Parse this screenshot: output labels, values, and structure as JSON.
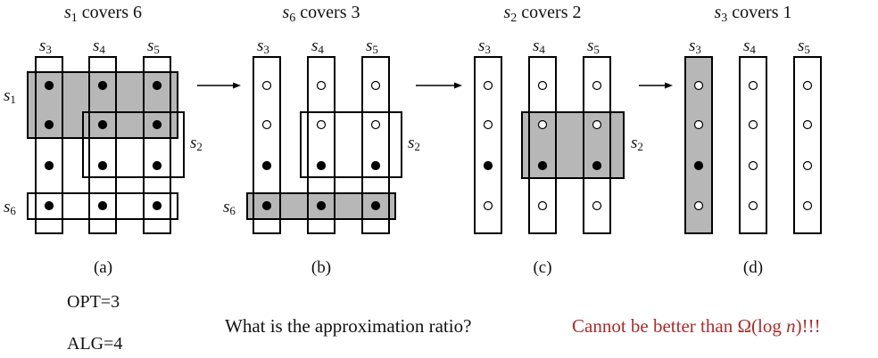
{
  "colors": {
    "shade": "#b7b7b7",
    "stroke": "#000000",
    "answer": "#b02a2a",
    "text": "#111111"
  },
  "panels": [
    {
      "title_set": "s",
      "title_sub": "1",
      "title_rest": " covers 6",
      "caption": "(a)"
    },
    {
      "title_set": "s",
      "title_sub": "6",
      "title_rest": " covers 3",
      "caption": "(b)"
    },
    {
      "title_set": "s",
      "title_sub": "2",
      "title_rest": " covers 2",
      "caption": "(c)"
    },
    {
      "title_set": "s",
      "title_sub": "3",
      "title_rest": " covers 1",
      "caption": "(d)"
    }
  ],
  "column_labels": [
    {
      "set": "s",
      "sub": "3"
    },
    {
      "set": "s",
      "sub": "4"
    },
    {
      "set": "s",
      "sub": "5"
    }
  ],
  "row_set_labels": {
    "s1": {
      "set": "s",
      "sub": "1"
    },
    "s2": {
      "set": "s",
      "sub": "2"
    },
    "s6": {
      "set": "s",
      "sub": "6"
    }
  },
  "stats": {
    "opt": "OPT=3",
    "alg": "ALG=4"
  },
  "question": "What is the approximation ratio?",
  "answer": {
    "prefix": "Cannot be better than ",
    "omega": "Ω(log ",
    "n": "n",
    "suffix": ")!!!"
  }
}
